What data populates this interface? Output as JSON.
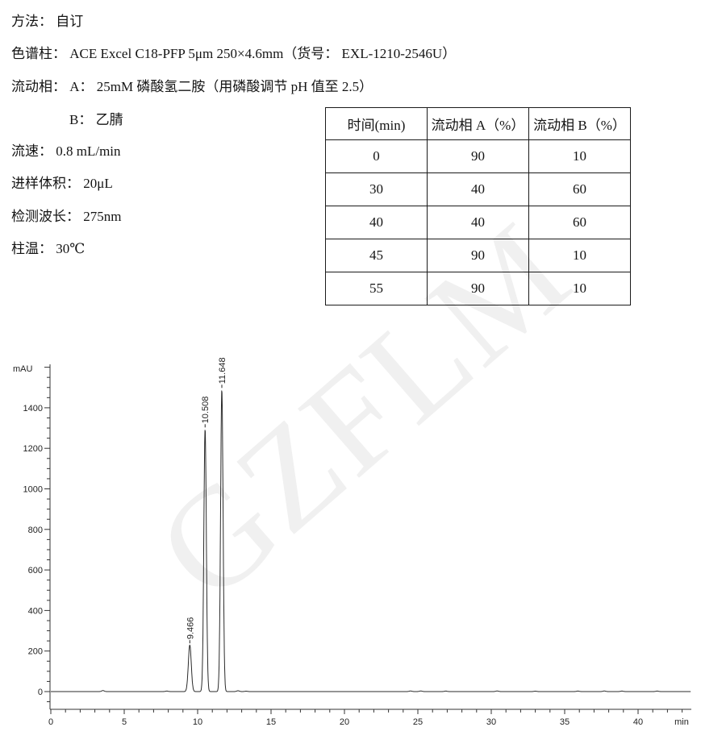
{
  "method": {
    "lines": [
      "方法： 自订",
      "色谱柱： ACE Excel C18-PFP 5μm 250×4.6mm（货号： EXL-1210-2546U）",
      "流动相： A： 25mM 磷酸氢二胺（用磷酸调节 pH 值至 2.5）",
      "B： 乙腈",
      "流速： 0.8 mL/min",
      "进样体积： 20μL",
      "检测波长： 275nm",
      "柱温： 30℃"
    ]
  },
  "gradient_table": {
    "headers": [
      "时间(min)",
      "流动相 A（%）",
      "流动相 B（%）"
    ],
    "rows": [
      [
        "0",
        "90",
        "10"
      ],
      [
        "30",
        "40",
        "60"
      ],
      [
        "40",
        "40",
        "60"
      ],
      [
        "45",
        "90",
        "10"
      ],
      [
        "55",
        "90",
        "10"
      ]
    ]
  },
  "watermark": {
    "text": "GZFLM",
    "color": "#f0f0f0"
  },
  "chart_data": {
    "type": "line",
    "title": "",
    "ylabel": "mAU",
    "xlabel": "min",
    "xlim": [
      0,
      43.6
    ],
    "ylim": [
      -90,
      1615
    ],
    "x_major_ticks": [
      0,
      5,
      10,
      15,
      20,
      25,
      30,
      35,
      40
    ],
    "x_minor_step_min": 1,
    "y_major_ticks": [
      0,
      200,
      400,
      600,
      800,
      1000,
      1200,
      1400
    ],
    "y_minor_step": 50,
    "grid": false,
    "legend": false,
    "trace_color": "#2b2b2b",
    "axis_color": "#333333",
    "baseline_mau": 0,
    "peaks": [
      {
        "rt_min": 9.466,
        "height_mau": 230,
        "sigma_min": 0.1,
        "label": "9.466"
      },
      {
        "rt_min": 10.508,
        "height_mau": 1295,
        "sigma_min": 0.085,
        "label": "10.508"
      },
      {
        "rt_min": 11.648,
        "height_mau": 1490,
        "sigma_min": 0.085,
        "label": "11.648"
      }
    ],
    "baseline_bumps": [
      [
        3.55,
        5
      ],
      [
        7.9,
        2.5
      ],
      [
        12.75,
        4
      ],
      [
        13.3,
        2
      ],
      [
        24.5,
        3
      ],
      [
        25.2,
        3
      ],
      [
        26.9,
        2.5
      ],
      [
        30.4,
        3
      ],
      [
        33.0,
        2
      ],
      [
        35.9,
        2.5
      ],
      [
        37.7,
        3
      ],
      [
        38.9,
        2.5
      ],
      [
        41.3,
        2.5
      ]
    ]
  }
}
